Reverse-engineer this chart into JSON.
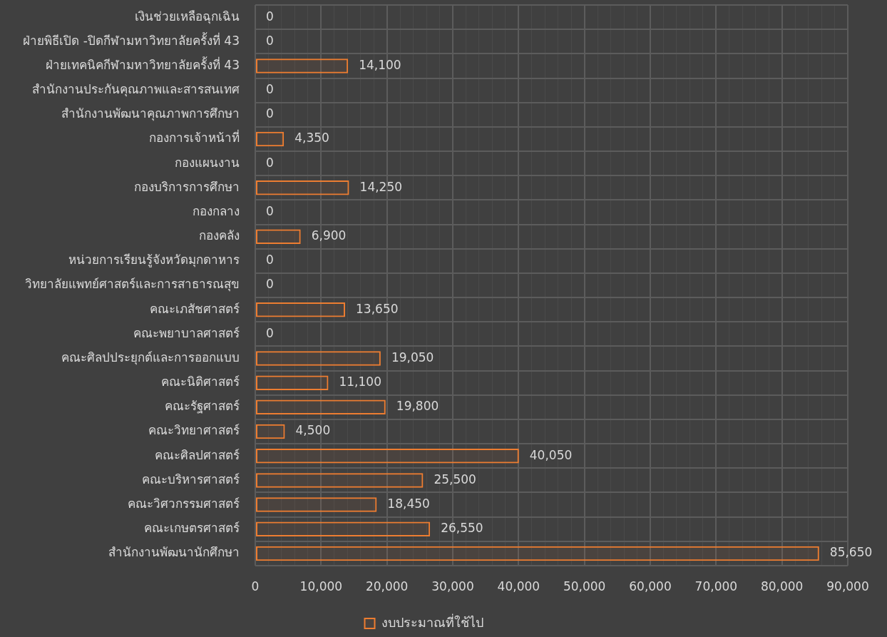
{
  "chart_data": {
    "type": "bar",
    "orientation": "horizontal",
    "categories": [
      "เงินช่วยเหลือฉุกเฉิน",
      "ฝ่ายพิธีเปิด -ปิดกีฬามหาวิทยาลัยครั้งที่ 43",
      "ฝ่ายเทคนิคกีฬามหาวิทยาลัยครั้งที่ 43",
      "สำนักงานประกันคุณภาพและสารสนเทศ",
      "สำนักงานพัฒนาคุณภาพการศึกษา",
      "กองการเจ้าหน้าที่",
      "กองแผนงาน",
      "กองบริการการศึกษา",
      "กองกลาง",
      "กองคลัง",
      "หน่วยการเรียนรู้จังหวัดมุกดาหาร",
      "วิทยาลัยแพทย์ศาสตร์และการสาธารณสุข",
      "คณะเภสัชศาสตร์",
      "คณะพยาบาลศาสตร์",
      "คณะศิลปประยุกต์และการออกแบบ",
      "คณะนิติศาสตร์",
      "คณะรัฐศาสตร์",
      "คณะวิทยาศาสตร์",
      "คณะศิลปศาสตร์",
      "คณะบริหารศาสตร์",
      "คณะวิศวกรรมศาสตร์",
      "คณะเกษตรศาสตร์",
      "สำนักงานพัฒนานักศึกษา"
    ],
    "series": [
      {
        "name": "งบประมาณที่ใช้ไป",
        "color": "#ed7d31",
        "values": [
          0,
          0,
          14100,
          0,
          0,
          4350,
          0,
          14250,
          0,
          6900,
          0,
          0,
          13650,
          0,
          19050,
          11100,
          19800,
          4500,
          40050,
          25500,
          18450,
          26550,
          85650
        ],
        "value_labels": [
          "0",
          "0",
          "14,100",
          "0",
          "0",
          "4,350",
          "0",
          "14,250",
          "0",
          "6,900",
          "0",
          "0",
          "13,650",
          "0",
          "19,050",
          "11,100",
          "19,800",
          "4,500",
          "40,050",
          "25,500",
          "18,450",
          "26,550",
          "85,650"
        ]
      }
    ],
    "xlim": [
      0,
      90000
    ],
    "xticks": [
      {
        "value": 0,
        "label": "0"
      },
      {
        "value": 2000,
        "label": null
      },
      {
        "value": 4000,
        "label": null
      },
      {
        "value": 6000,
        "label": null
      },
      {
        "value": 8000,
        "label": null
      },
      {
        "value": 10000,
        "label": "10,000"
      },
      {
        "value": 12000,
        "label": null
      },
      {
        "value": 14000,
        "label": null
      },
      {
        "value": 16000,
        "label": null
      },
      {
        "value": 18000,
        "label": null
      },
      {
        "value": 20000,
        "label": "20,000"
      },
      {
        "value": 22000,
        "label": null
      },
      {
        "value": 24000,
        "label": null
      },
      {
        "value": 26000,
        "label": null
      },
      {
        "value": 28000,
        "label": null
      },
      {
        "value": 30000,
        "label": "30,000"
      },
      {
        "value": 32000,
        "label": null
      },
      {
        "value": 34000,
        "label": null
      },
      {
        "value": 36000,
        "label": null
      },
      {
        "value": 38000,
        "label": null
      },
      {
        "value": 40000,
        "label": "40,000"
      },
      {
        "value": 42000,
        "label": null
      },
      {
        "value": 44000,
        "label": null
      },
      {
        "value": 46000,
        "label": null
      },
      {
        "value": 48000,
        "label": null
      },
      {
        "value": 50000,
        "label": "50,000"
      },
      {
        "value": 52000,
        "label": null
      },
      {
        "value": 54000,
        "label": null
      },
      {
        "value": 56000,
        "label": null
      },
      {
        "value": 58000,
        "label": null
      },
      {
        "value": 60000,
        "label": "60,000"
      },
      {
        "value": 62000,
        "label": null
      },
      {
        "value": 64000,
        "label": null
      },
      {
        "value": 66000,
        "label": null
      },
      {
        "value": 68000,
        "label": null
      },
      {
        "value": 70000,
        "label": "70,000"
      },
      {
        "value": 72000,
        "label": null
      },
      {
        "value": 74000,
        "label": null
      },
      {
        "value": 76000,
        "label": null
      },
      {
        "value": 78000,
        "label": null
      },
      {
        "value": 80000,
        "label": "80,000"
      },
      {
        "value": 82000,
        "label": null
      },
      {
        "value": 84000,
        "label": null
      },
      {
        "value": 86000,
        "label": null
      },
      {
        "value": 88000,
        "label": null
      },
      {
        "value": 90000,
        "label": "90,000"
      }
    ],
    "grid": true,
    "legend": "bottom"
  }
}
